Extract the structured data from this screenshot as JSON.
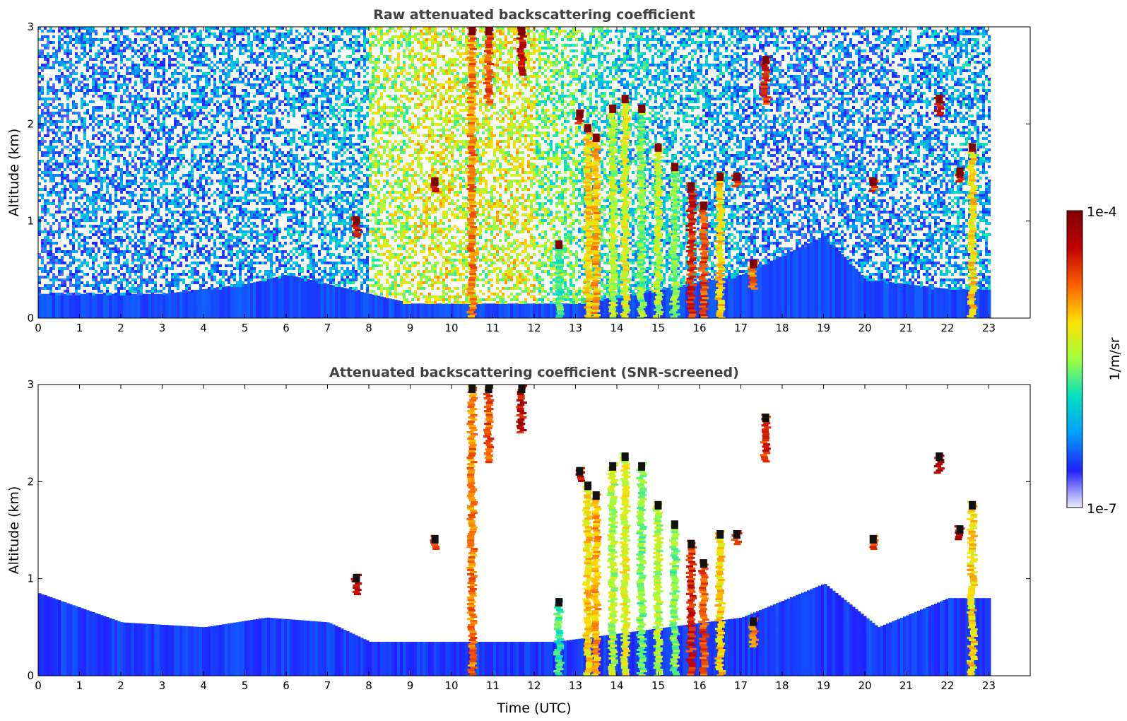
{
  "chart_data": [
    {
      "type": "heatmap",
      "title": "Raw attenuated backscattering coefficient",
      "xlabel": "",
      "ylabel": "Altitude (km)",
      "xlim": [
        0,
        24
      ],
      "ylim": [
        0,
        3
      ],
      "x_ticks": [
        "0",
        "1",
        "2",
        "3",
        "4",
        "5",
        "6",
        "7",
        "8",
        "9",
        "10",
        "11",
        "12",
        "13",
        "14",
        "15",
        "16",
        "17",
        "18",
        "19",
        "20",
        "21",
        "22",
        "23"
      ],
      "y_ticks": [
        "0",
        "1",
        "2",
        "3"
      ],
      "data_end_hour": 23,
      "noise_levels_by_hour": [
        0.18,
        0.2,
        0.2,
        0.22,
        0.22,
        0.22,
        0.24,
        0.26,
        0.5,
        0.55,
        0.52,
        0.55,
        0.45,
        0.35,
        0.3,
        0.28,
        0.25,
        0.2,
        0.18,
        0.2,
        0.2,
        0.22,
        0.25,
        0.3
      ],
      "boundary_layer_top_km": [
        {
          "x": 0,
          "y": 0.25
        },
        {
          "x": 3,
          "y": 0.25
        },
        {
          "x": 5,
          "y": 0.35
        },
        {
          "x": 6,
          "y": 0.45
        },
        {
          "x": 7,
          "y": 0.35
        },
        {
          "x": 9,
          "y": 0.15
        },
        {
          "x": 13,
          "y": 0.15
        },
        {
          "x": 17,
          "y": 0.45
        },
        {
          "x": 19,
          "y": 0.85
        },
        {
          "x": 20,
          "y": 0.4
        },
        {
          "x": 22,
          "y": 0.3
        },
        {
          "x": 23,
          "y": 0.3
        }
      ],
      "features": [
        {
          "x": 7.7,
          "y0": 0.85,
          "y1": 1.05,
          "intensity": 0.95
        },
        {
          "x": 9.6,
          "y0": 1.3,
          "y1": 1.45,
          "intensity": 0.9
        },
        {
          "x": 10.5,
          "y0": 0.0,
          "y1": 3.0,
          "intensity": 0.8
        },
        {
          "x": 10.9,
          "y0": 2.2,
          "y1": 3.0,
          "intensity": 0.85
        },
        {
          "x": 11.7,
          "y0": 2.5,
          "y1": 3.0,
          "intensity": 0.95
        },
        {
          "x": 12.6,
          "y0": 0.0,
          "y1": 0.8,
          "intensity": 0.5
        },
        {
          "x": 13.1,
          "y0": 2.0,
          "y1": 2.15,
          "intensity": 0.95
        },
        {
          "x": 13.3,
          "y0": 0.0,
          "y1": 2.0,
          "intensity": 0.7
        },
        {
          "x": 13.5,
          "y0": 0.0,
          "y1": 1.9,
          "intensity": 0.75
        },
        {
          "x": 13.9,
          "y0": 0.0,
          "y1": 2.2,
          "intensity": 0.6
        },
        {
          "x": 14.2,
          "y0": 0.0,
          "y1": 2.3,
          "intensity": 0.65
        },
        {
          "x": 14.6,
          "y0": 0.0,
          "y1": 2.2,
          "intensity": 0.55
        },
        {
          "x": 15.0,
          "y0": 0.0,
          "y1": 1.8,
          "intensity": 0.6
        },
        {
          "x": 15.4,
          "y0": 0.0,
          "y1": 1.6,
          "intensity": 0.55
        },
        {
          "x": 15.8,
          "y0": 0.0,
          "y1": 1.4,
          "intensity": 0.9
        },
        {
          "x": 16.1,
          "y0": 0.0,
          "y1": 1.2,
          "intensity": 0.85
        },
        {
          "x": 16.5,
          "y0": 0.0,
          "y1": 1.5,
          "intensity": 0.7
        },
        {
          "x": 16.9,
          "y0": 1.35,
          "y1": 1.5,
          "intensity": 0.9
        },
        {
          "x": 17.3,
          "y0": 0.3,
          "y1": 0.6,
          "intensity": 0.8
        },
        {
          "x": 17.6,
          "y0": 2.2,
          "y1": 2.7,
          "intensity": 0.9
        },
        {
          "x": 20.2,
          "y0": 1.3,
          "y1": 1.45,
          "intensity": 0.85
        },
        {
          "x": 21.8,
          "y0": 2.1,
          "y1": 2.3,
          "intensity": 0.95
        },
        {
          "x": 22.3,
          "y0": 1.4,
          "y1": 1.55,
          "intensity": 0.95
        },
        {
          "x": 22.6,
          "y0": 0.0,
          "y1": 1.8,
          "intensity": 0.7
        }
      ]
    },
    {
      "type": "heatmap",
      "title": "Attenuated backscattering coefficient (SNR-screened)",
      "xlabel": "Time (UTC)",
      "ylabel": "Altitude (km)",
      "xlim": [
        0,
        24
      ],
      "ylim": [
        0,
        3
      ],
      "x_ticks": [
        "0",
        "1",
        "2",
        "3",
        "4",
        "5",
        "6",
        "7",
        "8",
        "9",
        "10",
        "11",
        "12",
        "13",
        "14",
        "15",
        "16",
        "17",
        "18",
        "19",
        "20",
        "21",
        "22",
        "23"
      ],
      "y_ticks": [
        "0",
        "1",
        "2",
        "3"
      ],
      "data_end_hour": 23,
      "screened_layer_top_km": [
        {
          "x": 0,
          "y": 0.85
        },
        {
          "x": 2,
          "y": 0.55
        },
        {
          "x": 4,
          "y": 0.5
        },
        {
          "x": 5.5,
          "y": 0.6
        },
        {
          "x": 7,
          "y": 0.55
        },
        {
          "x": 8,
          "y": 0.35
        },
        {
          "x": 12.5,
          "y": 0.35
        },
        {
          "x": 17,
          "y": 0.6
        },
        {
          "x": 19,
          "y": 0.95
        },
        {
          "x": 20.3,
          "y": 0.5
        },
        {
          "x": 22,
          "y": 0.8
        },
        {
          "x": 23,
          "y": 0.8
        }
      ]
    }
  ],
  "colorbar": {
    "label": "1/m/sr",
    "max_label": "1e-4",
    "min_label": "1e-7",
    "colors": [
      "#eeeeff",
      "#2020ff",
      "#00a0ff",
      "#00e0c0",
      "#a0ff40",
      "#ffe000",
      "#ff6000",
      "#c00000",
      "#800000"
    ]
  }
}
